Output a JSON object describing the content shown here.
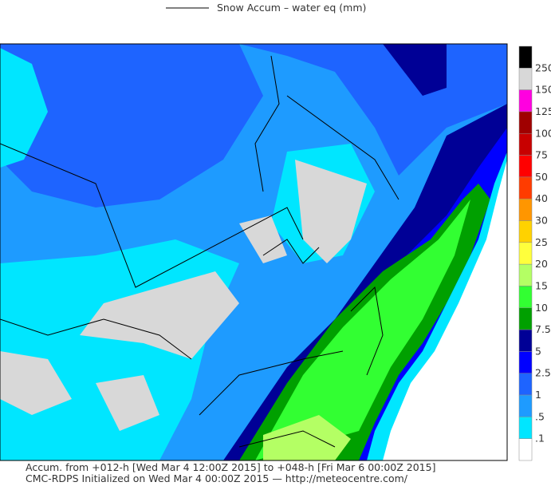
{
  "header": {
    "title": "Snow Accum – water eq (mm)"
  },
  "legend": {
    "labels": [
      "250",
      "150",
      "125",
      "100",
      "75",
      "50",
      "40",
      "30",
      "25",
      "20",
      "15",
      "10",
      "7.5",
      "5",
      "2.5",
      "1",
      ".5",
      ".1"
    ],
    "colors": [
      "#000000",
      "#d8d8d8",
      "#ff00e0",
      "#a00000",
      "#c80000",
      "#ff0000",
      "#ff3c00",
      "#ff9600",
      "#ffd200",
      "#ffff3c",
      "#b4ff64",
      "#32ff32",
      "#00a000",
      "#000096",
      "#0000ff",
      "#1e64ff",
      "#1e9bff",
      "#00e6ff",
      "#ffffff"
    ]
  },
  "footer": {
    "line1": "Accum. from +012-h [Wed Mar 4 12:00Z 2015] to +048-h [Fri Mar 6 00:00Z 2015]",
    "line2": "CMC-RDPS Initialized on Wed Mar 4 00:00Z 2015 — http://meteocentre.com/"
  }
}
